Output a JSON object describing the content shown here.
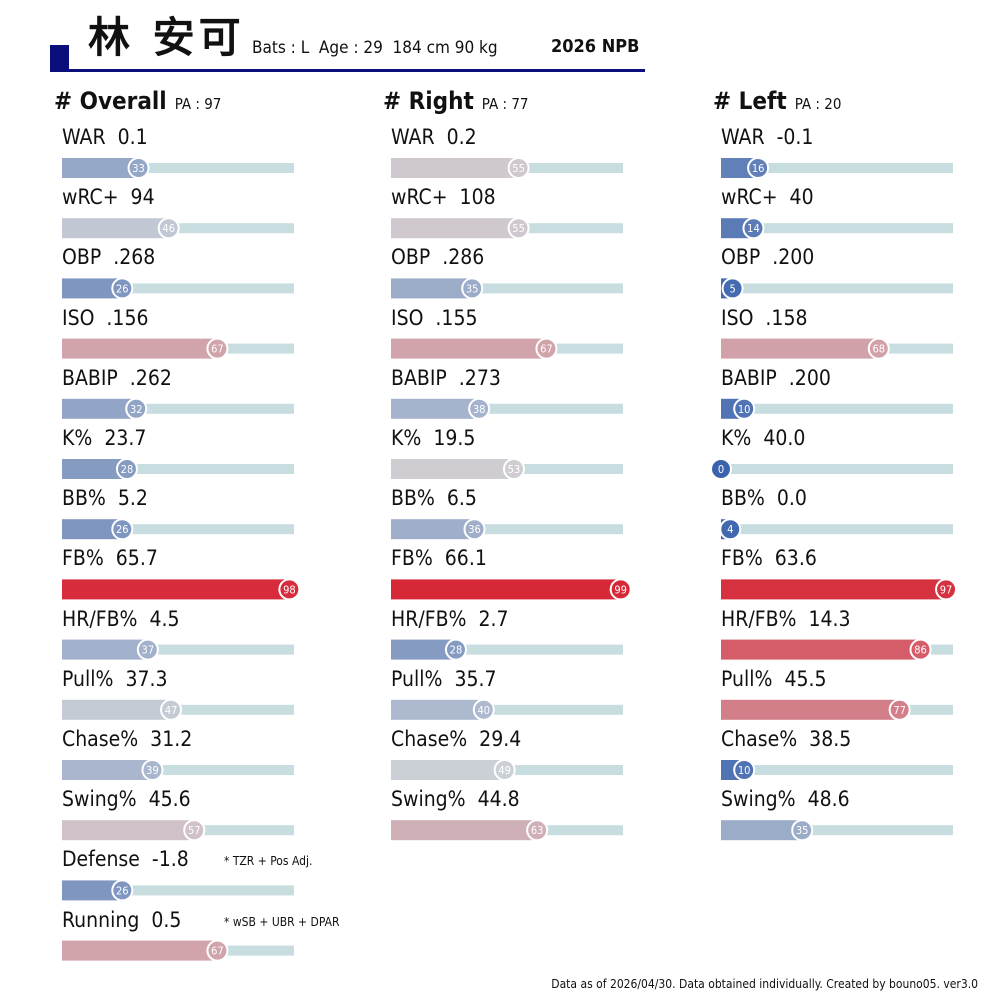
{
  "player": {
    "name": "林 安可",
    "meta": "Bats : L  Age : 29  184 cm 90 kg",
    "season": "2026 NPB"
  },
  "footer": "Data as of 2026/04/30. Data obtained individually. Created by bouno05.  ver3.0",
  "chart_data": {
    "type": "bar",
    "value_range": [
      0,
      100
    ],
    "color_scale": [
      "#3b63ad",
      "#cfd3d8",
      "#d62433"
    ],
    "panels": [
      {
        "title": "# Overall",
        "pa": "PA : 97",
        "metrics": [
          {
            "label": "WAR",
            "value": "0.1",
            "percentile": 33
          },
          {
            "label": "wRC+",
            "value": "94",
            "percentile": 46
          },
          {
            "label": "OBP",
            "value": ".268",
            "percentile": 26
          },
          {
            "label": "ISO",
            "value": ".156",
            "percentile": 67
          },
          {
            "label": "BABIP",
            "value": ".262",
            "percentile": 32
          },
          {
            "label": "K%",
            "value": "23.7",
            "percentile": 28
          },
          {
            "label": "BB%",
            "value": "5.2",
            "percentile": 26
          },
          {
            "label": "FB%",
            "value": "65.7",
            "percentile": 98
          },
          {
            "label": "HR/FB%",
            "value": "4.5",
            "percentile": 37
          },
          {
            "label": "Pull%",
            "value": "37.3",
            "percentile": 47
          },
          {
            "label": "Chase%",
            "value": "31.2",
            "percentile": 39
          },
          {
            "label": "Swing%",
            "value": "45.6",
            "percentile": 57
          },
          {
            "label": "Defense",
            "value": "-1.8",
            "percentile": 26,
            "note": "* TZR + Pos Adj."
          },
          {
            "label": "Running",
            "value": "0.5",
            "percentile": 67,
            "note": "* wSB + UBR + DPAR"
          }
        ]
      },
      {
        "title": "# Right",
        "pa": "PA : 77",
        "metrics": [
          {
            "label": "WAR",
            "value": "0.2",
            "percentile": 55
          },
          {
            "label": "wRC+",
            "value": "108",
            "percentile": 55
          },
          {
            "label": "OBP",
            "value": ".286",
            "percentile": 35
          },
          {
            "label": "ISO",
            "value": ".155",
            "percentile": 67
          },
          {
            "label": "BABIP",
            "value": ".273",
            "percentile": 38
          },
          {
            "label": "K%",
            "value": "19.5",
            "percentile": 53
          },
          {
            "label": "BB%",
            "value": "6.5",
            "percentile": 36
          },
          {
            "label": "FB%",
            "value": "66.1",
            "percentile": 99
          },
          {
            "label": "HR/FB%",
            "value": "2.7",
            "percentile": 28
          },
          {
            "label": "Pull%",
            "value": "35.7",
            "percentile": 40
          },
          {
            "label": "Chase%",
            "value": "29.4",
            "percentile": 49
          },
          {
            "label": "Swing%",
            "value": "44.8",
            "percentile": 63
          }
        ]
      },
      {
        "title": "# Left",
        "pa": "PA : 20",
        "metrics": [
          {
            "label": "WAR",
            "value": "-0.1",
            "percentile": 16
          },
          {
            "label": "wRC+",
            "value": "40",
            "percentile": 14
          },
          {
            "label": "OBP",
            "value": ".200",
            "percentile": 5
          },
          {
            "label": "ISO",
            "value": ".158",
            "percentile": 68
          },
          {
            "label": "BABIP",
            "value": ".200",
            "percentile": 10
          },
          {
            "label": "K%",
            "value": "40.0",
            "percentile": 0
          },
          {
            "label": "BB%",
            "value": "0.0",
            "percentile": 4
          },
          {
            "label": "FB%",
            "value": "63.6",
            "percentile": 97
          },
          {
            "label": "HR/FB%",
            "value": "14.3",
            "percentile": 86
          },
          {
            "label": "Pull%",
            "value": "45.5",
            "percentile": 77
          },
          {
            "label": "Chase%",
            "value": "38.5",
            "percentile": 10
          },
          {
            "label": "Swing%",
            "value": "48.6",
            "percentile": 35
          }
        ]
      }
    ]
  }
}
